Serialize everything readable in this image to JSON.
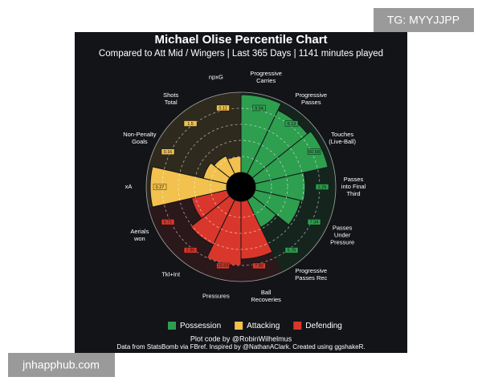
{
  "chart_data": {
    "type": "polar-bar",
    "title": "Michael Olise Percentile Chart",
    "subtitle": "Compared to Att Mid / Wingers | Last 365 Days | 1141 minutes played",
    "categories": [
      "Progressive\nCarries",
      "Progressive\nPasses",
      "Touches\n(Live-Ball)",
      "Passes\ninto Final\nThird",
      "Passes\nUnder\nPressure",
      "Progressive\nPasses Rec",
      "Ball\nRecoveries",
      "Pressures",
      "Tkl+Int",
      "Aerials\nwon",
      "xA",
      "Non-Penalty\nGoals",
      "Shots\nTotal",
      "npxG"
    ],
    "series": [
      {
        "name": "Possession",
        "color": "#2e9e4f",
        "values": [
          97,
          88,
          93,
          62,
          58,
          38,
          null,
          null,
          null,
          null,
          null,
          null,
          null,
          null
        ],
        "stat_labels": [
          "9.54",
          "6.13",
          "60.58",
          "2.29",
          "7.34",
          "5.76",
          null,
          null,
          null,
          null,
          null,
          null,
          null,
          null
        ]
      },
      {
        "name": "Attacking",
        "color": "#f2c14e",
        "values": [
          null,
          null,
          null,
          null,
          null,
          null,
          null,
          null,
          null,
          null,
          95,
          30,
          25,
          20
        ],
        "stat_labels": [
          null,
          null,
          null,
          null,
          null,
          null,
          null,
          null,
          null,
          null,
          "0.27",
          "0.16",
          "1.5",
          "0.11"
        ]
      },
      {
        "name": "Defending",
        "color": "#d9372b",
        "values": [
          null,
          null,
          null,
          null,
          null,
          null,
          72,
          80,
          62,
          45,
          null,
          null,
          null,
          null
        ],
        "stat_labels": [
          null,
          null,
          null,
          null,
          null,
          null,
          "7.90",
          "19.66",
          "2.86",
          "0.71",
          null,
          null,
          null,
          null
        ]
      }
    ],
    "rlim": [
      0,
      100
    ],
    "rticks": [
      20,
      40,
      60,
      80,
      100
    ],
    "grid": true,
    "footer": [
      "Plot code by @RobinWilhelmus",
      "Data from StatsBomb via FBref. Inspired by @NathanAClark. Created using ggshakeR."
    ]
  },
  "watermarks": [
    "TG: MYYJJPP",
    "jnhapphub.com"
  ]
}
